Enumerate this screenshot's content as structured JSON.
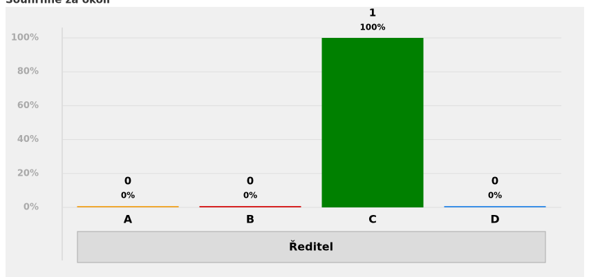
{
  "chart_data": {
    "type": "bar",
    "title": "Souhrnně za okolí",
    "categories": [
      "A",
      "B",
      "C",
      "D"
    ],
    "counts": [
      0,
      0,
      1,
      0
    ],
    "values": [
      0,
      0,
      100,
      0
    ],
    "value_labels": [
      "0%",
      "0%",
      "100%",
      "0%"
    ],
    "colors": [
      "#f0a830",
      "#d62020",
      "#008000",
      "#3a8ee6"
    ],
    "group": "Ředitel",
    "ylim": [
      0,
      100
    ],
    "yticks": [
      {
        "value": 0,
        "label": "0%"
      },
      {
        "value": 20,
        "label": "20%"
      },
      {
        "value": 40,
        "label": "40%"
      },
      {
        "value": 60,
        "label": "60%"
      },
      {
        "value": 80,
        "label": "80%"
      },
      {
        "value": 100,
        "label": "100%"
      }
    ],
    "grid": true
  }
}
